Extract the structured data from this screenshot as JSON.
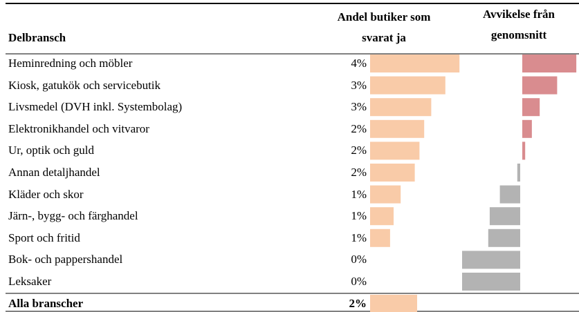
{
  "table": {
    "headers": [
      "Delbransch",
      "Andel butiker som svarat ja",
      "Avvikelse från genomsnitt"
    ],
    "rows": [
      {
        "name": "Heminredning och möbler",
        "share": 3.8,
        "share_label": "4%",
        "deviation": 1.86
      },
      {
        "name": "Kiosk, gatukök och servicebutik",
        "share": 3.2,
        "share_label": "3%",
        "deviation": 1.2
      },
      {
        "name": "Livsmedel (DVH inkl. Systembolag)",
        "share": 2.6,
        "share_label": "3%",
        "deviation": 0.6
      },
      {
        "name": "Elektronikhandel och vitvaror",
        "share": 2.3,
        "share_label": "2%",
        "deviation": 0.33
      },
      {
        "name": "Ur, optik och guld",
        "share": 2.1,
        "share_label": "2%",
        "deviation": 0.1
      },
      {
        "name": "Annan detaljhandel",
        "share": 1.9,
        "share_label": "2%",
        "deviation": -0.1
      },
      {
        "name": "Kläder och skor",
        "share": 1.3,
        "share_label": "1%",
        "deviation": -0.7
      },
      {
        "name": "Järn-, bygg- och färghandel",
        "share": 1.0,
        "share_label": "1%",
        "deviation": -1.05
      },
      {
        "name": "Sport och fritid",
        "share": 0.85,
        "share_label": "1%",
        "deviation": -1.1
      },
      {
        "name": "Bok- och pappershandel",
        "share": 0,
        "share_label": "0%",
        "deviation": -2.0
      },
      {
        "name": "Leksaker",
        "share": 0,
        "share_label": "0%",
        "deviation": -2.0
      }
    ],
    "total": {
      "name": "Alla branscher",
      "share": 2.0,
      "share_label": "2%"
    }
  }
}
